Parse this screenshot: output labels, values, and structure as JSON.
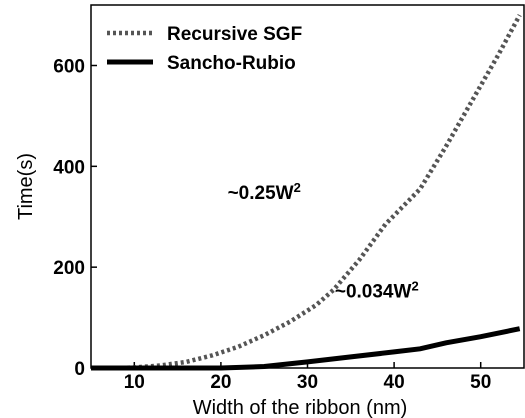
{
  "chart_data": {
    "type": "line",
    "title": "",
    "xlabel": "Width of the ribbon (nm)",
    "ylabel": "Time(s)",
    "xlim": [
      5,
      55
    ],
    "ylim": [
      0,
      720
    ],
    "xticks": [
      10,
      20,
      30,
      40,
      50
    ],
    "yticks": [
      0,
      200,
      400,
      600
    ],
    "grid": false,
    "legend_position": "top-left",
    "series": [
      {
        "name": "Recursive SGF",
        "style": "dotted",
        "color": "#555555",
        "x": [
          5,
          8,
          10,
          13,
          16,
          19,
          22,
          25,
          28,
          31,
          33,
          36,
          39,
          43,
          46,
          49,
          52,
          54.5
        ],
        "y": [
          0,
          0,
          1,
          5,
          12,
          25,
          42,
          65,
          92,
          125,
          155,
          215,
          285,
          355,
          440,
          530,
          620,
          700
        ]
      },
      {
        "name": "Sancho-Rubio",
        "style": "solid",
        "color": "#000000",
        "x": [
          5,
          10,
          15,
          20,
          25,
          30,
          35,
          40,
          43,
          46,
          50,
          54.5
        ],
        "y": [
          0,
          0,
          0,
          0,
          3,
          12,
          22,
          32,
          38,
          50,
          62,
          78
        ]
      }
    ],
    "annotations": [
      {
        "base": "~0.25W",
        "sup": "2",
        "x": 25,
        "y": 335
      },
      {
        "base": "~0.034W",
        "sup": "2",
        "x": 38,
        "y": 140
      }
    ]
  }
}
